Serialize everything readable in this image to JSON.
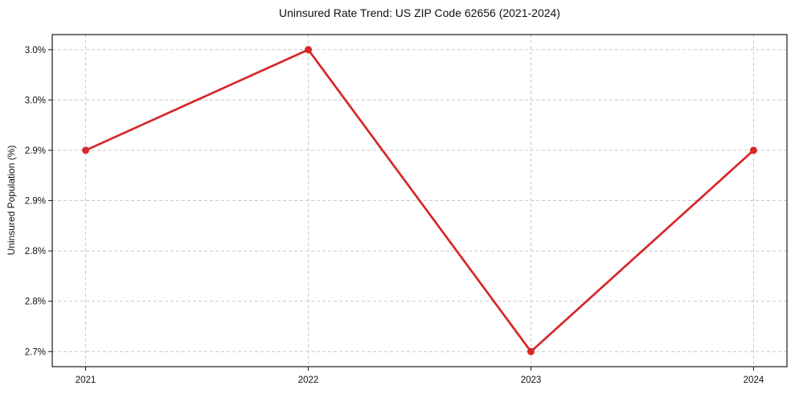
{
  "chart_data": {
    "type": "line",
    "title": "Uninsured Rate Trend: US ZIP Code 62656 (2021-2024)",
    "xlabel": "",
    "ylabel": "Uninsured Population (%)",
    "x": [
      2021,
      2022,
      2023,
      2024
    ],
    "values": [
      2.9,
      3.0,
      2.7,
      2.9
    ],
    "x_ticks": [
      {
        "value": 2021,
        "label": "2021"
      },
      {
        "value": 2022,
        "label": "2022"
      },
      {
        "value": 2023,
        "label": "2023"
      },
      {
        "value": 2024,
        "label": "2024"
      }
    ],
    "y_ticks": [
      {
        "value": 2.7,
        "label": "2.7%"
      },
      {
        "value": 2.75,
        "label": "2.8%"
      },
      {
        "value": 2.8,
        "label": "2.8%"
      },
      {
        "value": 2.85,
        "label": "2.9%"
      },
      {
        "value": 2.9,
        "label": "2.9%"
      },
      {
        "value": 2.95,
        "label": "3.0%"
      },
      {
        "value": 3.0,
        "label": "3.0%"
      }
    ],
    "xlim": [
      2020.85,
      2024.15
    ],
    "ylim": [
      2.685,
      3.015
    ],
    "grid": true,
    "grid_style": "dashed",
    "legend_position": "none",
    "marker": "circle",
    "colors": {
      "line": "#d62728",
      "marker": "#d62728",
      "grid": "#c9c9c9",
      "spine": "#1a1a1a",
      "tick": "#1a1a1a",
      "text": "#111111",
      "background": "#ffffff"
    }
  }
}
